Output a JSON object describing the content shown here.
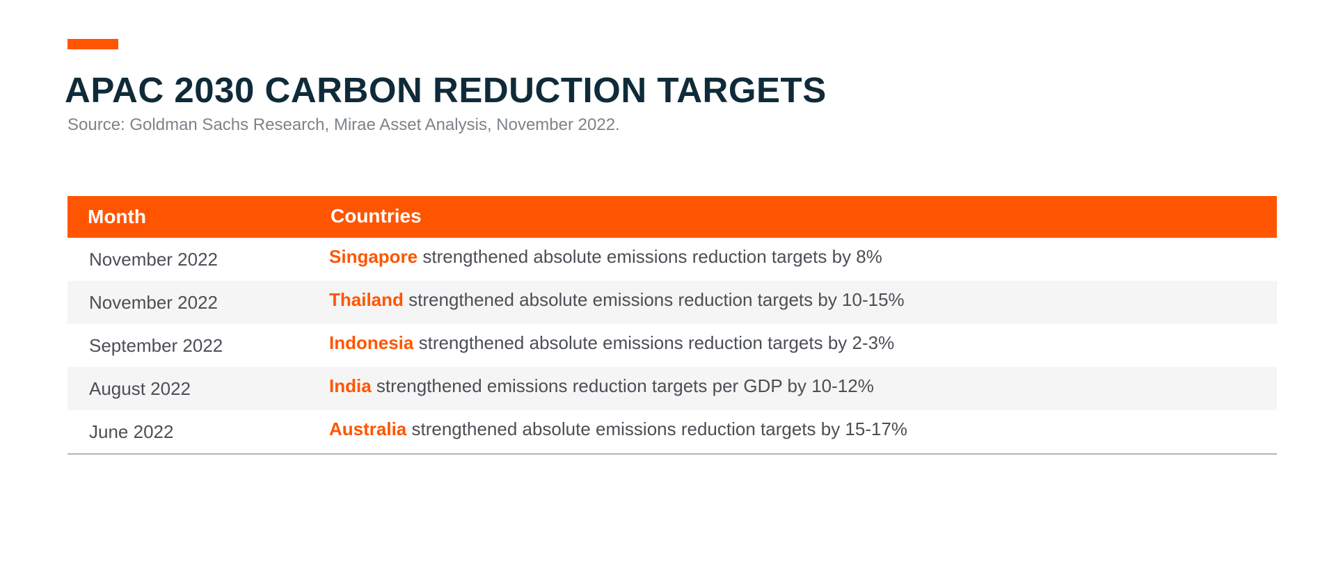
{
  "colors": {
    "accent": "#ff5500",
    "title": "#0f2b3a",
    "subtitle": "#7d8389",
    "row_alt_bg": "#f5f5f5",
    "body_text": "#4b4f55"
  },
  "header": {
    "title": "APAC 2030 CARBON REDUCTION TARGETS",
    "source": "Source: Goldman Sachs Research, Mirae Asset Analysis, November 2022."
  },
  "table": {
    "columns": [
      "Month",
      "Countries"
    ],
    "rows": [
      {
        "month": "November 2022",
        "country": "Singapore",
        "text": "strengthened absolute emissions reduction targets by 8%"
      },
      {
        "month": "November 2022",
        "country": "Thailand",
        "text": "strengthened absolute emissions reduction targets by 10-15%"
      },
      {
        "month": "September 2022",
        "country": "Indonesia",
        "text": "strengthened absolute emissions reduction targets by 2-3%"
      },
      {
        "month": "August 2022",
        "country": "India",
        "text": "strengthened emissions reduction targets per GDP by 10-12%"
      },
      {
        "month": "June 2022",
        "country": "Australia",
        "text": "strengthened absolute emissions reduction targets by 15-17%"
      }
    ]
  }
}
